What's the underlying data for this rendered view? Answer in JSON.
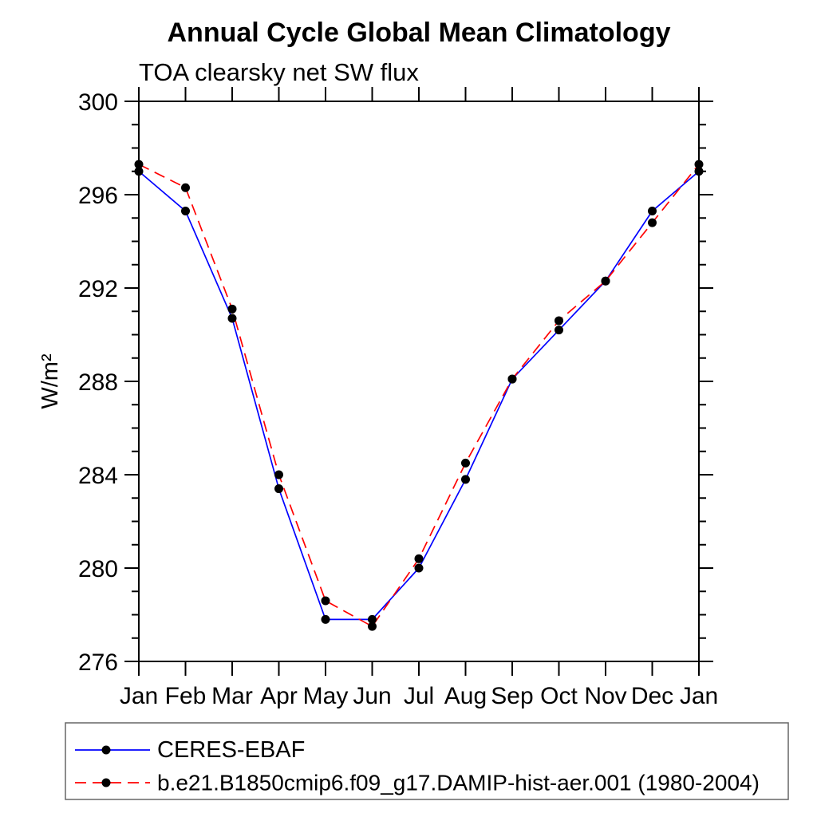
{
  "title": "Annual Cycle Global Mean Climatology",
  "subtitle": "TOA clearsky net SW flux",
  "y_axis_label": "W/m²",
  "colors": {
    "background": "#ffffff",
    "axis": "#000000",
    "marker": "#000000",
    "obs_line": "#0000ff",
    "model_line": "#ff0000",
    "legend_border": "#666666"
  },
  "legend": {
    "entries": [
      {
        "label": "CERES-EBAF",
        "line_style": "solid",
        "color": "#0000ff",
        "marker": "black-dot"
      },
      {
        "label": "b.e21.B1850cmip6.f09_g17.DAMIP-hist-aer.001 (1980-2004)",
        "line_style": "dashed",
        "color": "#ff0000",
        "marker": "black-dot"
      }
    ]
  },
  "chart_data": {
    "type": "line",
    "title": "Annual Cycle Global Mean Climatology",
    "subtitle": "TOA clearsky net SW flux",
    "xlabel": "",
    "ylabel": "W/m²",
    "categories": [
      "Jan",
      "Feb",
      "Mar",
      "Apr",
      "May",
      "Jun",
      "Jul",
      "Aug",
      "Sep",
      "Oct",
      "Nov",
      "Dec",
      "Jan"
    ],
    "ylim": [
      276,
      300
    ],
    "y_major_ticks": [
      276,
      280,
      284,
      288,
      292,
      296,
      300
    ],
    "y_minor_step": 1,
    "grid": false,
    "legend_position": "bottom-left-box",
    "marker": "black-dot",
    "series": [
      {
        "name": "CERES-EBAF",
        "color": "#0000ff",
        "line_style": "solid",
        "values": [
          297.0,
          295.3,
          290.7,
          283.4,
          277.8,
          277.8,
          280.0,
          283.8,
          288.1,
          290.2,
          292.3,
          295.3,
          297.0
        ]
      },
      {
        "name": "b.e21.B1850cmip6.f09_g17.DAMIP-hist-aer.001 (1980-2004)",
        "color": "#ff0000",
        "line_style": "dashed",
        "values": [
          297.3,
          296.3,
          291.1,
          284.0,
          278.6,
          277.5,
          280.4,
          284.5,
          288.1,
          290.6,
          292.3,
          294.8,
          297.3
        ]
      }
    ]
  }
}
